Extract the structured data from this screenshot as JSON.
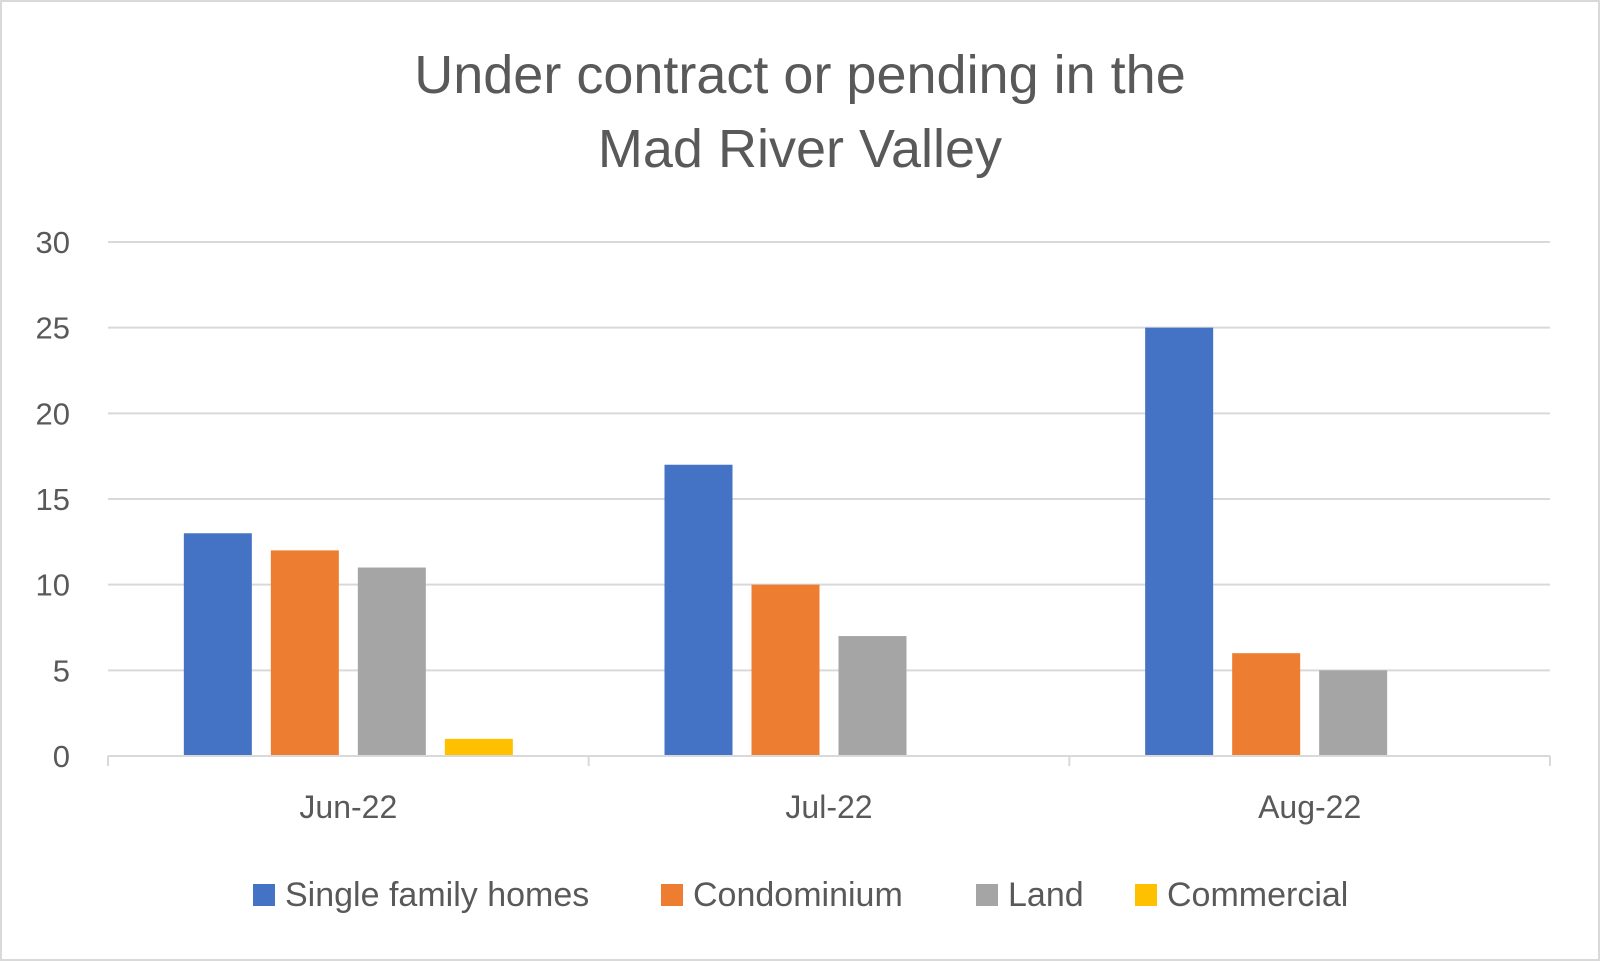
{
  "chart_data": {
    "type": "bar",
    "title_lines": [
      "Under contract or pending in the",
      "Mad River Valley"
    ],
    "categories": [
      "Jun-22",
      "Jul-22",
      "Aug-22"
    ],
    "series": [
      {
        "name": "Single family homes",
        "color": "#4472C4",
        "values": [
          13,
          17,
          25
        ]
      },
      {
        "name": "Condominium",
        "color": "#ED7D31",
        "values": [
          12,
          10,
          6
        ]
      },
      {
        "name": "Land",
        "color": "#A5A5A5",
        "values": [
          11,
          7,
          5
        ]
      },
      {
        "name": "Commercial",
        "color": "#FFC000",
        "values": [
          1,
          0,
          0
        ]
      }
    ],
    "ylim": [
      0,
      30
    ],
    "yticks": [
      0,
      5,
      10,
      15,
      20,
      25,
      30
    ],
    "grid": true,
    "legend_position": "bottom"
  }
}
